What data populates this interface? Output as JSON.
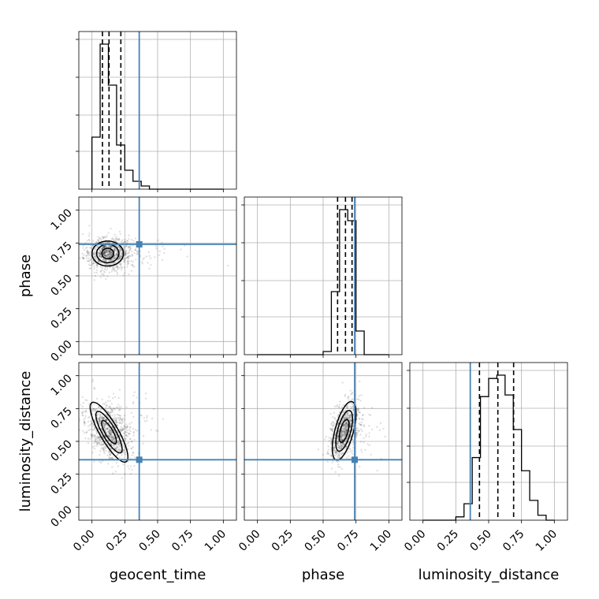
{
  "chart_data": {
    "type": "corner",
    "parameters": [
      "geocent_time",
      "phase",
      "luminosity_distance"
    ],
    "labels": {
      "geocent_time": "geocent_time",
      "phase": "phase",
      "luminosity_distance": "luminosity_distance"
    },
    "axis_range": [
      -0.1,
      1.1
    ],
    "ticks": [
      0.0,
      0.25,
      0.5,
      0.75,
      1.0
    ],
    "tick_labels": [
      "0.00",
      "0.25",
      "0.50",
      "0.75",
      "1.00"
    ],
    "grid": true,
    "truths": {
      "geocent_time": 0.36,
      "phase": 0.74,
      "luminosity_distance": 0.36
    },
    "truth_color": "#4682b4",
    "quantiles": {
      "geocent_time": [
        0.08,
        0.13,
        0.22
      ],
      "phase": [
        0.61,
        0.67,
        0.72
      ],
      "luminosity_distance": [
        0.43,
        0.57,
        0.69
      ]
    },
    "histograms": {
      "geocent_time": {
        "bin_edges": [
          0.0,
          0.0625,
          0.125,
          0.1875,
          0.25,
          0.3125,
          0.375,
          0.4375,
          0.5,
          0.5625,
          0.625,
          0.6875,
          0.75,
          0.8125,
          0.875,
          0.9375,
          1.0
        ],
        "counts": [
          0.33,
          0.92,
          0.66,
          0.28,
          0.12,
          0.05,
          0.02,
          0.0,
          0.0,
          0.0,
          0.0,
          0.0,
          0.0,
          0.0,
          0.0,
          0.0
        ]
      },
      "phase": {
        "bin_edges": [
          0.0,
          0.0625,
          0.125,
          0.1875,
          0.25,
          0.3125,
          0.375,
          0.4375,
          0.5,
          0.5625,
          0.625,
          0.6875,
          0.75,
          0.8125,
          0.875,
          0.9375,
          1.0
        ],
        "counts": [
          0.0,
          0.0,
          0.0,
          0.0,
          0.0,
          0.0,
          0.0,
          0.0,
          0.02,
          0.4,
          0.92,
          0.85,
          0.15,
          0.0,
          0.0,
          0.0
        ]
      },
      "luminosity_distance": {
        "bin_edges": [
          0.0,
          0.0625,
          0.125,
          0.1875,
          0.25,
          0.3125,
          0.375,
          0.4375,
          0.5,
          0.5625,
          0.625,
          0.6875,
          0.75,
          0.8125,
          0.875,
          0.9375,
          1.0
        ],
        "counts": [
          0.0,
          0.0,
          0.0,
          0.0,
          0.02,
          0.1,
          0.38,
          0.75,
          0.86,
          0.88,
          0.76,
          0.55,
          0.3,
          0.12,
          0.03,
          0.0
        ]
      }
    },
    "joint": [
      {
        "x": "geocent_time",
        "y": "phase",
        "center": [
          0.12,
          0.67
        ],
        "contours": [
          {
            "rx": 0.045,
            "ry": 0.04,
            "angle": 0
          },
          {
            "rx": 0.085,
            "ry": 0.07,
            "angle": 0
          },
          {
            "rx": 0.12,
            "ry": 0.095,
            "angle": 0
          }
        ],
        "scatter_spread": [
          0.09,
          0.06
        ]
      },
      {
        "x": "geocent_time",
        "y": "luminosity_distance",
        "center": [
          0.13,
          0.57
        ],
        "contours": [
          {
            "rx": 0.03,
            "ry": 0.1,
            "angle": 30
          },
          {
            "rx": 0.05,
            "ry": 0.18,
            "angle": 30
          },
          {
            "rx": 0.07,
            "ry": 0.26,
            "angle": 30
          }
        ],
        "scatter_spread": [
          0.07,
          0.12
        ]
      },
      {
        "x": "phase",
        "y": "luminosity_distance",
        "center": [
          0.66,
          0.58
        ],
        "contours": [
          {
            "rx": 0.03,
            "ry": 0.09,
            "angle": -15
          },
          {
            "rx": 0.05,
            "ry": 0.16,
            "angle": -15
          },
          {
            "rx": 0.07,
            "ry": 0.23,
            "angle": -15
          }
        ],
        "scatter_spread": [
          0.045,
          0.11
        ]
      }
    ]
  }
}
